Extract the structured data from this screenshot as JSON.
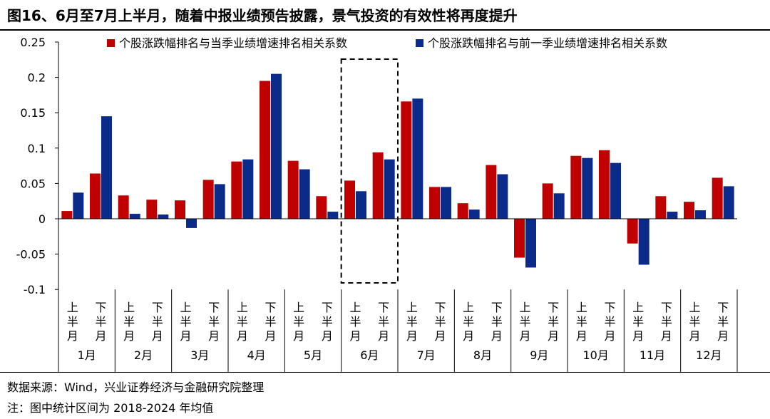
{
  "title": "图16、6月至7月上半月，随着中报业绩预告披露，景气投资的有效性将再度提升",
  "source": "数据来源：Wind，兴业证券经济与金融研究院整理",
  "note": "注：图中统计区间为 2018-2024 年均值",
  "chart_data": {
    "type": "bar",
    "months": [
      "1月",
      "2月",
      "3月",
      "4月",
      "5月",
      "6月",
      "7月",
      "8月",
      "9月",
      "10月",
      "11月",
      "12月"
    ],
    "halves": [
      "上半月",
      "下半月"
    ],
    "categories": [
      "1月上半月",
      "1月下半月",
      "2月上半月",
      "2月下半月",
      "3月上半月",
      "3月下半月",
      "4月上半月",
      "4月下半月",
      "5月上半月",
      "5月下半月",
      "6月上半月",
      "6月下半月",
      "7月上半月",
      "7月下半月",
      "8月上半月",
      "8月下半月",
      "9月上半月",
      "9月下半月",
      "10月上半月",
      "10月下半月",
      "11月上半月",
      "11月下半月",
      "12月上半月",
      "12月下半月"
    ],
    "series": [
      {
        "name": "个股涨跌幅排名与当季业绩增速排名相关系数",
        "color": "#C00000",
        "values": [
          0.011,
          0.064,
          0.033,
          0.027,
          0.026,
          0.055,
          0.081,
          0.195,
          0.082,
          0.032,
          0.054,
          0.094,
          0.166,
          0.045,
          0.022,
          0.076,
          -0.055,
          0.05,
          0.089,
          0.097,
          -0.035,
          0.032,
          0.024,
          0.058
        ]
      },
      {
        "name": "个股涨跌幅排名与前一季业绩增速排名相关系数",
        "color": "#0A2B8A",
        "values": [
          0.037,
          0.145,
          0.007,
          0.006,
          -0.013,
          0.049,
          0.084,
          0.205,
          0.07,
          0.01,
          0.039,
          0.084,
          0.17,
          0.045,
          0.013,
          0.063,
          -0.069,
          0.036,
          0.086,
          0.079,
          -0.065,
          0.01,
          0.012,
          0.046
        ]
      }
    ],
    "yticks": [
      "0.25",
      "0.2",
      "0.15",
      "0.1",
      "0.05",
      "0",
      "-0.05",
      "-0.1"
    ],
    "ylim": [
      -0.1,
      0.25
    ],
    "highlight_month": "6月",
    "legend_position": "top"
  }
}
